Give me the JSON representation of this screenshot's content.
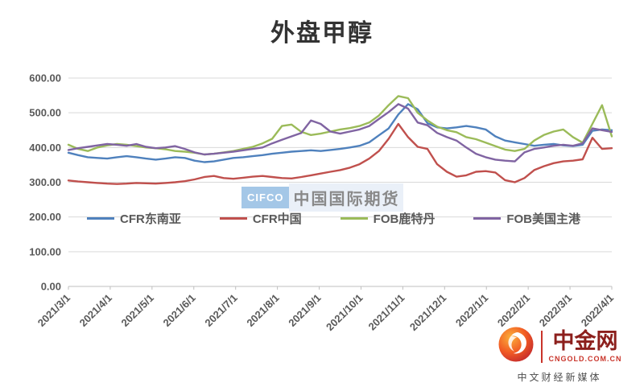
{
  "chart_data": {
    "type": "line",
    "title": "外盘甲醇",
    "categories": [
      "2021/3/1",
      "2021/4/1",
      "2021/5/1",
      "2021/6/1",
      "2021/7/1",
      "2021/8/1",
      "2021/9/1",
      "2021/10/1",
      "2021/11/1",
      "2021/12/1",
      "2022/1/1",
      "2022/2/1",
      "2022/3/1",
      "2022/4/1"
    ],
    "ylim": [
      0,
      600
    ],
    "ytick_step": 100,
    "ytick_format": "0.00",
    "grid": "horizontal",
    "legend_position": "inside-middle",
    "series": [
      {
        "name": "CFR东南亚",
        "color": "#4F81BD",
        "values": [
          385,
          378,
          372,
          370,
          368,
          372,
          375,
          372,
          368,
          365,
          368,
          372,
          370,
          362,
          358,
          360,
          365,
          370,
          372,
          375,
          378,
          382,
          385,
          388,
          390,
          392,
          390,
          393,
          396,
          400,
          405,
          415,
          435,
          455,
          495,
          525,
          510,
          470,
          458,
          455,
          458,
          462,
          458,
          452,
          432,
          420,
          415,
          410,
          405,
          408,
          410,
          406,
          404,
          408,
          448,
          452,
          450
        ]
      },
      {
        "name": "CFR中国",
        "color": "#C0504D",
        "values": [
          305,
          302,
          300,
          298,
          296,
          295,
          296,
          298,
          297,
          296,
          298,
          300,
          303,
          308,
          315,
          318,
          312,
          310,
          313,
          316,
          318,
          315,
          312,
          311,
          315,
          320,
          325,
          330,
          335,
          342,
          352,
          368,
          390,
          425,
          468,
          430,
          402,
          396,
          352,
          330,
          316,
          320,
          330,
          332,
          328,
          306,
          300,
          312,
          335,
          346,
          355,
          360,
          362,
          366,
          428,
          396,
          398
        ]
      },
      {
        "name": "FOB鹿特丹",
        "color": "#9BBB59",
        "values": [
          408,
          396,
          390,
          400,
          406,
          410,
          408,
          404,
          400,
          398,
          395,
          390,
          388,
          385,
          380,
          382,
          386,
          390,
          396,
          402,
          412,
          425,
          462,
          466,
          445,
          436,
          440,
          446,
          452,
          456,
          462,
          472,
          492,
          522,
          548,
          542,
          500,
          478,
          460,
          450,
          444,
          430,
          424,
          414,
          404,
          394,
          390,
          396,
          420,
          436,
          446,
          452,
          430,
          414,
          468,
          522,
          432
        ]
      },
      {
        "name": "FOB美国主港",
        "color": "#8064A2",
        "values": [
          393,
          398,
          402,
          406,
          410,
          408,
          405,
          410,
          402,
          398,
          400,
          404,
          396,
          386,
          380,
          382,
          385,
          388,
          392,
          396,
          400,
          412,
          422,
          432,
          442,
          478,
          468,
          446,
          440,
          446,
          452,
          462,
          482,
          502,
          525,
          512,
          472,
          464,
          442,
          430,
          420,
          400,
          382,
          372,
          365,
          362,
          360,
          386,
          396,
          400,
          405,
          408,
          405,
          412,
          455,
          450,
          445
        ]
      }
    ]
  },
  "watermark": {
    "badge": "CIFCO",
    "text": "中国国际期货"
  },
  "logo": {
    "name": "中金网",
    "domain": "CNGOLD.COM.CN",
    "tagline": "中文财经新媒体"
  }
}
